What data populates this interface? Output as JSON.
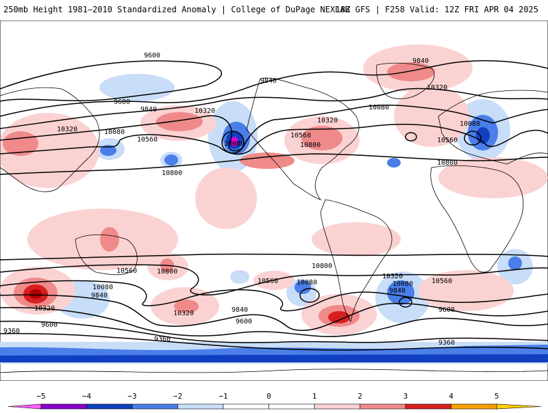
{
  "header": {
    "left": "250mb Height 1981–2010 Standardized Anomaly | College of DuPage NEXLAB",
    "right": "18Z GFS | F258 Valid: 12Z FRI APR 04 2025"
  },
  "colors": {
    "neg5": "#d600d6",
    "neg4": "#8a00c8",
    "neg3": "#1040c0",
    "neg2": "#4a7ee8",
    "neg1": "#c8ddf8",
    "pos1": "#fbd2d2",
    "pos2": "#f08a8a",
    "pos3": "#d62020",
    "pos4": "#b00000",
    "pos5": "#f5a000",
    "neg_end": "#ff60ff",
    "pos_end": "#ffd000"
  },
  "colorbar": {
    "ticks": [
      "−5",
      "−4",
      "−3",
      "−2",
      "−1",
      "0",
      "1",
      "2",
      "3",
      "4",
      "5"
    ]
  },
  "contour_labels": [
    "9600",
    "9840",
    "10320",
    "9600",
    "9840",
    "10320",
    "10080",
    "10560",
    "10800",
    "10080",
    "10560",
    "10800",
    "10320",
    "10080",
    "10320",
    "9840",
    "10080",
    "10560",
    "10800",
    "10800",
    "10560",
    "10800",
    "10560",
    "10080",
    "10080",
    "9840",
    "10320",
    "9600",
    "9360",
    "10320",
    "9840",
    "9600",
    "9360",
    "10320",
    "10080",
    "9840",
    "10560",
    "9600",
    "9360"
  ]
}
